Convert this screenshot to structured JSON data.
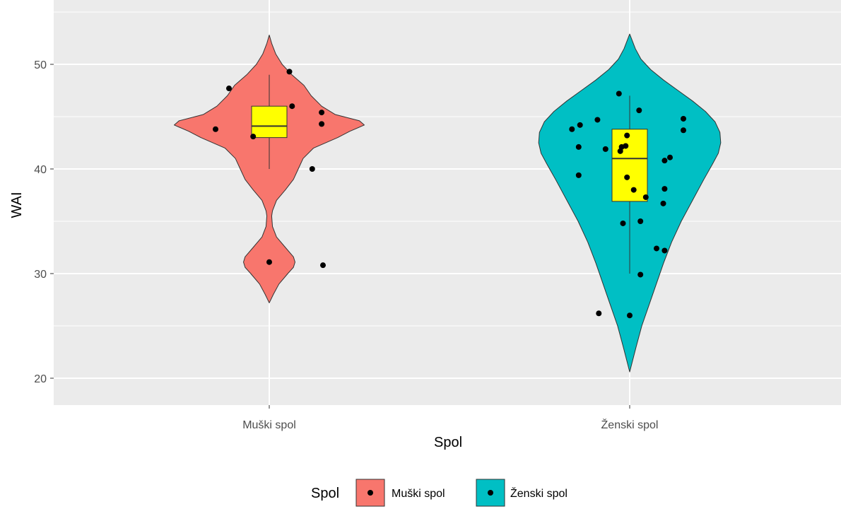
{
  "chart_data": {
    "type": "violin",
    "xlabel": "Spol",
    "ylabel": "WAI",
    "ylim": [
      17.5,
      55
    ],
    "yticks": [
      20,
      30,
      40,
      50
    ],
    "categories": [
      "Muški spol",
      "Ženski spol"
    ],
    "legend": {
      "title": "Spol",
      "position": "bottom",
      "entries": [
        "Muški spol",
        "Ženski spol"
      ]
    },
    "grid": true,
    "background": "#ebebeb",
    "colors": {
      "Muški spol": "#f8766d",
      "Ženski spol": "#00bfc4",
      "box_fill": "#ffff00",
      "points": "#000000"
    },
    "series": [
      {
        "name": "Muški spol",
        "points": [
          {
            "x_jitter": -0.4,
            "y": 43.8
          },
          {
            "x_jitter": -0.3,
            "y": 47.7
          },
          {
            "x_jitter": 0.15,
            "y": 49.3
          },
          {
            "x_jitter": 0.17,
            "y": 46.0
          },
          {
            "x_jitter": -0.12,
            "y": 43.1
          },
          {
            "x_jitter": 0.39,
            "y": 45.4
          },
          {
            "x_jitter": 0.39,
            "y": 44.3
          },
          {
            "x_jitter": 0.32,
            "y": 40.0
          },
          {
            "x_jitter": 0.0,
            "y": 31.1
          },
          {
            "x_jitter": 0.4,
            "y": 30.8
          }
        ],
        "box": {
          "min": 40.0,
          "q1": 43.0,
          "median": 44.1,
          "q3": 46.0,
          "max": 49.0
        },
        "violin": [
          [
            27.2,
            0.0
          ],
          [
            28.0,
            0.05
          ],
          [
            29.0,
            0.12
          ],
          [
            30.0,
            0.23
          ],
          [
            30.6,
            0.3
          ],
          [
            31.1,
            0.32
          ],
          [
            31.6,
            0.3
          ],
          [
            32.5,
            0.2
          ],
          [
            33.5,
            0.09
          ],
          [
            34.5,
            0.04
          ],
          [
            35.5,
            0.03
          ],
          [
            36.0,
            0.04
          ],
          [
            37.0,
            0.09
          ],
          [
            38.0,
            0.2
          ],
          [
            39.0,
            0.3
          ],
          [
            40.0,
            0.36
          ],
          [
            41.0,
            0.42
          ],
          [
            42.0,
            0.55
          ],
          [
            43.0,
            0.85
          ],
          [
            43.6,
            1.0
          ],
          [
            44.2,
            1.18
          ],
          [
            44.6,
            1.12
          ],
          [
            45.2,
            0.82
          ],
          [
            46.0,
            0.65
          ],
          [
            47.0,
            0.52
          ],
          [
            48.0,
            0.43
          ],
          [
            49.0,
            0.28
          ],
          [
            50.0,
            0.16
          ],
          [
            51.0,
            0.08
          ],
          [
            52.0,
            0.03
          ],
          [
            52.8,
            0.0
          ]
        ]
      },
      {
        "name": "Ženski spol",
        "points": [
          {
            "x_jitter": -0.43,
            "y": 43.8
          },
          {
            "x_jitter": -0.37,
            "y": 44.2
          },
          {
            "x_jitter": -0.24,
            "y": 44.7
          },
          {
            "x_jitter": -0.38,
            "y": 42.1
          },
          {
            "x_jitter": -0.38,
            "y": 39.4
          },
          {
            "x_jitter": -0.18,
            "y": 41.9
          },
          {
            "x_jitter": -0.08,
            "y": 47.2
          },
          {
            "x_jitter": -0.06,
            "y": 42.1
          },
          {
            "x_jitter": -0.07,
            "y": 41.7
          },
          {
            "x_jitter": -0.03,
            "y": 42.2
          },
          {
            "x_jitter": -0.02,
            "y": 43.2
          },
          {
            "x_jitter": -0.02,
            "y": 39.2
          },
          {
            "x_jitter": 0.03,
            "y": 38.0
          },
          {
            "x_jitter": 0.12,
            "y": 37.3
          },
          {
            "x_jitter": -0.05,
            "y": 34.8
          },
          {
            "x_jitter": 0.08,
            "y": 35.0
          },
          {
            "x_jitter": 0.07,
            "y": 45.6
          },
          {
            "x_jitter": 0.4,
            "y": 44.8
          },
          {
            "x_jitter": 0.4,
            "y": 43.7
          },
          {
            "x_jitter": 0.3,
            "y": 41.1
          },
          {
            "x_jitter": 0.26,
            "y": 40.8
          },
          {
            "x_jitter": 0.26,
            "y": 38.1
          },
          {
            "x_jitter": 0.25,
            "y": 36.7
          },
          {
            "x_jitter": 0.2,
            "y": 32.4
          },
          {
            "x_jitter": 0.26,
            "y": 32.2
          },
          {
            "x_jitter": 0.08,
            "y": 29.9
          },
          {
            "x_jitter": -0.23,
            "y": 26.2
          },
          {
            "x_jitter": 0.0,
            "y": 26.0
          }
        ],
        "box": {
          "min": 30.0,
          "q1": 36.9,
          "median": 41.0,
          "q3": 43.8,
          "max": 47.0
        },
        "violin": [
          [
            20.6,
            0.0
          ],
          [
            21.5,
            0.03
          ],
          [
            23.0,
            0.08
          ],
          [
            25.0,
            0.15
          ],
          [
            27.0,
            0.24
          ],
          [
            29.0,
            0.33
          ],
          [
            31.0,
            0.42
          ],
          [
            33.0,
            0.52
          ],
          [
            35.0,
            0.64
          ],
          [
            37.0,
            0.78
          ],
          [
            39.0,
            0.92
          ],
          [
            40.5,
            1.03
          ],
          [
            41.5,
            1.1
          ],
          [
            42.5,
            1.13
          ],
          [
            43.5,
            1.12
          ],
          [
            44.5,
            1.06
          ],
          [
            45.5,
            0.94
          ],
          [
            46.5,
            0.78
          ],
          [
            47.5,
            0.6
          ],
          [
            48.5,
            0.42
          ],
          [
            49.5,
            0.26
          ],
          [
            50.5,
            0.14
          ],
          [
            51.5,
            0.07
          ],
          [
            52.3,
            0.03
          ],
          [
            52.9,
            0.0
          ]
        ]
      }
    ]
  }
}
